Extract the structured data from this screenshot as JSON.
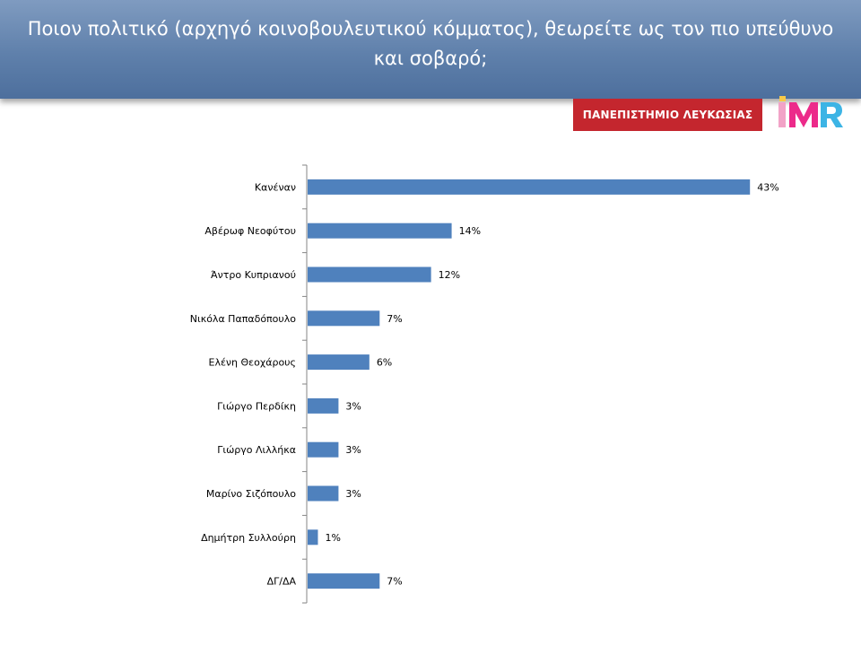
{
  "header": {
    "title": "Ποιον πολιτικό (αρχηγό κοινοβουλευτικού κόμματος), θεωρείτε ως τον πιο υπεύθυνο και σοβαρό;"
  },
  "logos": {
    "university": "ΠΑΝΕΠΙΣΤΗΜΙΟ ΛΕΥΚΩΣΙΑΣ",
    "imr": "IMR"
  },
  "colors": {
    "header": "#5f80ab",
    "bar": "#4f81bd",
    "university_logo": "#c4262e"
  },
  "chart_data": {
    "type": "bar",
    "orientation": "horizontal",
    "categories": [
      "Κανέναν",
      "Αβέρωφ Νεοφύτου",
      "Άντρο Κυπριανού",
      "Νικόλα Παπαδόπουλο",
      "Ελένη Θεοχάρους",
      "Γιώργο Περδίκη",
      "Γιώργο Λιλλήκα",
      "Μαρίνο Σιζόπουλο",
      "Δημήτρη Συλλούρη",
      "ΔΓ/ΔΑ"
    ],
    "values": [
      43,
      14,
      12,
      7,
      6,
      3,
      3,
      3,
      1,
      7
    ],
    "data_labels": [
      "43%",
      "14%",
      "12%",
      "7%",
      "6%",
      "3%",
      "3%",
      "3%",
      "1%",
      "7%"
    ],
    "xlim": [
      0,
      50
    ],
    "grid": false,
    "legend": "none"
  }
}
